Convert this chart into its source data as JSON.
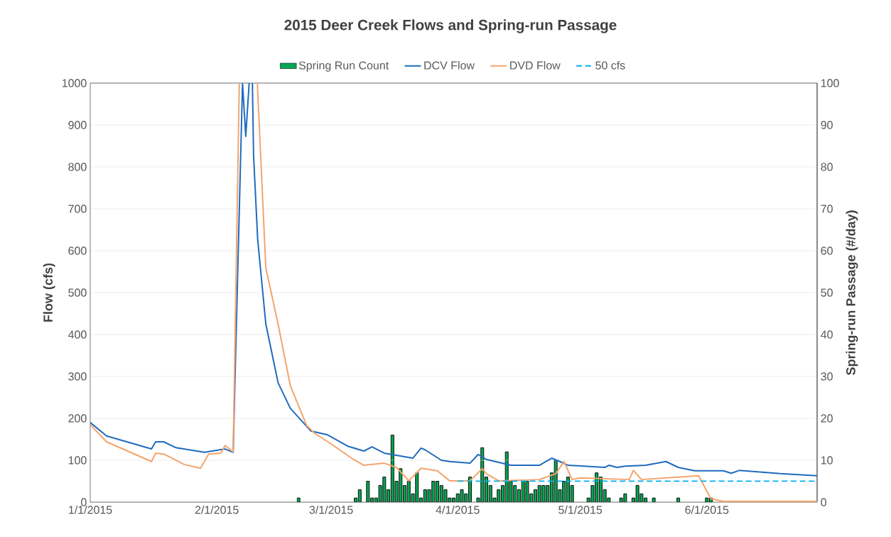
{
  "chart_data": {
    "type": "line",
    "title": "2015 Deer Creek Flows and Spring-run Passage",
    "ylabel": "Flow (cfs)",
    "y2label": "Spring-run Passage (#/day)",
    "xlim": [
      "2015-01-01",
      "2015-06-28"
    ],
    "xticks": [
      {
        "value": "2015-01-01",
        "label": "1/1/2015"
      },
      {
        "value": "2015-02-01",
        "label": "2/1/2015"
      },
      {
        "value": "2015-03-01",
        "label": "3/1/2015"
      },
      {
        "value": "2015-04-01",
        "label": "4/1/2015"
      },
      {
        "value": "2015-05-01",
        "label": "5/1/2015"
      },
      {
        "value": "2015-06-01",
        "label": "6/1/2015"
      }
    ],
    "ylim": [
      0,
      1000
    ],
    "yticks": [
      0,
      100,
      200,
      300,
      400,
      500,
      600,
      700,
      800,
      900,
      1000
    ],
    "y2lim": [
      0,
      100
    ],
    "y2ticks": [
      0,
      10,
      20,
      30,
      40,
      50,
      60,
      70,
      80,
      90,
      100
    ],
    "grid": "y",
    "legend": "top",
    "series": [
      {
        "name": "Spring Run Count",
        "type": "bar",
        "axis": "y2",
        "color": "#00a651",
        "x": [
          "2015-02-21",
          "2015-03-07",
          "2015-03-08",
          "2015-03-10",
          "2015-03-11",
          "2015-03-12",
          "2015-03-13",
          "2015-03-14",
          "2015-03-15",
          "2015-03-16",
          "2015-03-17",
          "2015-03-18",
          "2015-03-19",
          "2015-03-20",
          "2015-03-21",
          "2015-03-22",
          "2015-03-23",
          "2015-03-24",
          "2015-03-25",
          "2015-03-26",
          "2015-03-27",
          "2015-03-28",
          "2015-03-29",
          "2015-03-30",
          "2015-03-31",
          "2015-04-01",
          "2015-04-02",
          "2015-04-03",
          "2015-04-04",
          "2015-04-06",
          "2015-04-07",
          "2015-04-08",
          "2015-04-09",
          "2015-04-10",
          "2015-04-11",
          "2015-04-12",
          "2015-04-13",
          "2015-04-14",
          "2015-04-15",
          "2015-04-16",
          "2015-04-17",
          "2015-04-18",
          "2015-04-19",
          "2015-04-20",
          "2015-04-21",
          "2015-04-22",
          "2015-04-23",
          "2015-04-24",
          "2015-04-25",
          "2015-04-26",
          "2015-04-27",
          "2015-04-28",
          "2015-04-29",
          "2015-05-03",
          "2015-05-04",
          "2015-05-05",
          "2015-05-06",
          "2015-05-07",
          "2015-05-08",
          "2015-05-11",
          "2015-05-12",
          "2015-05-14",
          "2015-05-15",
          "2015-05-16",
          "2015-05-17",
          "2015-05-19",
          "2015-05-25",
          "2015-06-01",
          "2015-06-02"
        ],
        "values": [
          1,
          1,
          3,
          5,
          1,
          1,
          4,
          6,
          3,
          16,
          5,
          8,
          4,
          5,
          2,
          7,
          1,
          3,
          3,
          5,
          5,
          4,
          3,
          1,
          1,
          2,
          3,
          2,
          6,
          1,
          13,
          6,
          4,
          1,
          3,
          4,
          12,
          5,
          4,
          3,
          5,
          5,
          2,
          3,
          4,
          4,
          4,
          7,
          10,
          3,
          5,
          6,
          4,
          1,
          4,
          7,
          6,
          3,
          1,
          1,
          2,
          1,
          4,
          2,
          1,
          1,
          1,
          1,
          1
        ]
      },
      {
        "name": "DCV Flow",
        "color": "#1f6bbf",
        "x": [
          "2015-01-01",
          "2015-01-05",
          "2015-01-16",
          "2015-01-17",
          "2015-01-19",
          "2015-01-22",
          "2015-01-29",
          "2015-02-03",
          "2015-02-05",
          "2015-02-07T07:00",
          "2015-02-08T02:00",
          "2015-02-08T22:00",
          "2015-02-09T08:00",
          "2015-02-09T17:00",
          "2015-02-10",
          "2015-02-11",
          "2015-02-13",
          "2015-02-16",
          "2015-02-19",
          "2015-02-24",
          "2015-02-28",
          "2015-03-05",
          "2015-03-09",
          "2015-03-11",
          "2015-03-14",
          "2015-03-21",
          "2015-03-23",
          "2015-03-24",
          "2015-03-28",
          "2015-03-30",
          "2015-04-04",
          "2015-04-06",
          "2015-04-08",
          "2015-04-14",
          "2015-04-21",
          "2015-04-24",
          "2015-04-26",
          "2015-04-28",
          "2015-05-02",
          "2015-05-07",
          "2015-05-08",
          "2015-05-10",
          "2015-05-12",
          "2015-05-17",
          "2015-05-22",
          "2015-05-25",
          "2015-05-29",
          "2015-06-05",
          "2015-06-07",
          "2015-06-09",
          "2015-06-19",
          "2015-06-28"
        ],
        "values": [
          190,
          158,
          127,
          144,
          144,
          130,
          119,
          127,
          119,
          1000,
          873,
          1000,
          null,
          1000,
          827,
          627,
          425,
          285,
          224,
          170,
          161,
          134,
          122,
          132,
          117,
          105,
          129,
          125,
          100,
          97,
          93,
          114,
          102,
          88,
          88,
          105,
          97,
          88,
          86,
          83,
          88,
          83,
          86,
          88,
          97,
          83,
          75,
          75,
          69,
          76,
          68,
          63
        ]
      },
      {
        "name": "DVD Flow",
        "color": "#f4a46c",
        "x": [
          "2015-01-01",
          "2015-01-05",
          "2015-01-16",
          "2015-01-17",
          "2015-01-19",
          "2015-01-24",
          "2015-01-28",
          "2015-01-30",
          "2015-02-02",
          "2015-02-03",
          "2015-02-04",
          "2015-02-05",
          "2015-02-06T12:00",
          "2015-02-08T12:00",
          "2015-02-10T22:00",
          "2015-02-13",
          "2015-02-16",
          "2015-02-19",
          "2015-02-23",
          "2015-02-25",
          "2015-03-01",
          "2015-03-06",
          "2015-03-09",
          "2015-03-14",
          "2015-03-17",
          "2015-03-20",
          "2015-03-23",
          "2015-03-27",
          "2015-03-30",
          "2015-04-04",
          "2015-04-07",
          "2015-04-08",
          "2015-04-11",
          "2015-04-21",
          "2015-04-25",
          "2015-04-27",
          "2015-04-29",
          "2015-05-01",
          "2015-05-13",
          "2015-05-14",
          "2015-05-16",
          "2015-05-30",
          "2015-06-02",
          "2015-06-05",
          "2015-06-28"
        ],
        "values": [
          185,
          144,
          97,
          117,
          115,
          90,
          81,
          115,
          117,
          135,
          128,
          120,
          1000,
          null,
          1000,
          559,
          425,
          278,
          183,
          164,
          139,
          105,
          88,
          93,
          83,
          51,
          81,
          75,
          51,
          51,
          80,
          68,
          51,
          54,
          68,
          97,
          54,
          58,
          54,
          76,
          54,
          63,
          8,
          2,
          2
        ]
      },
      {
        "name": "50 cfs",
        "color": "#00b0f0",
        "line_style": "dashed",
        "x": [
          "2015-04-01",
          "2015-06-28"
        ],
        "values": [
          50,
          50
        ]
      }
    ]
  }
}
